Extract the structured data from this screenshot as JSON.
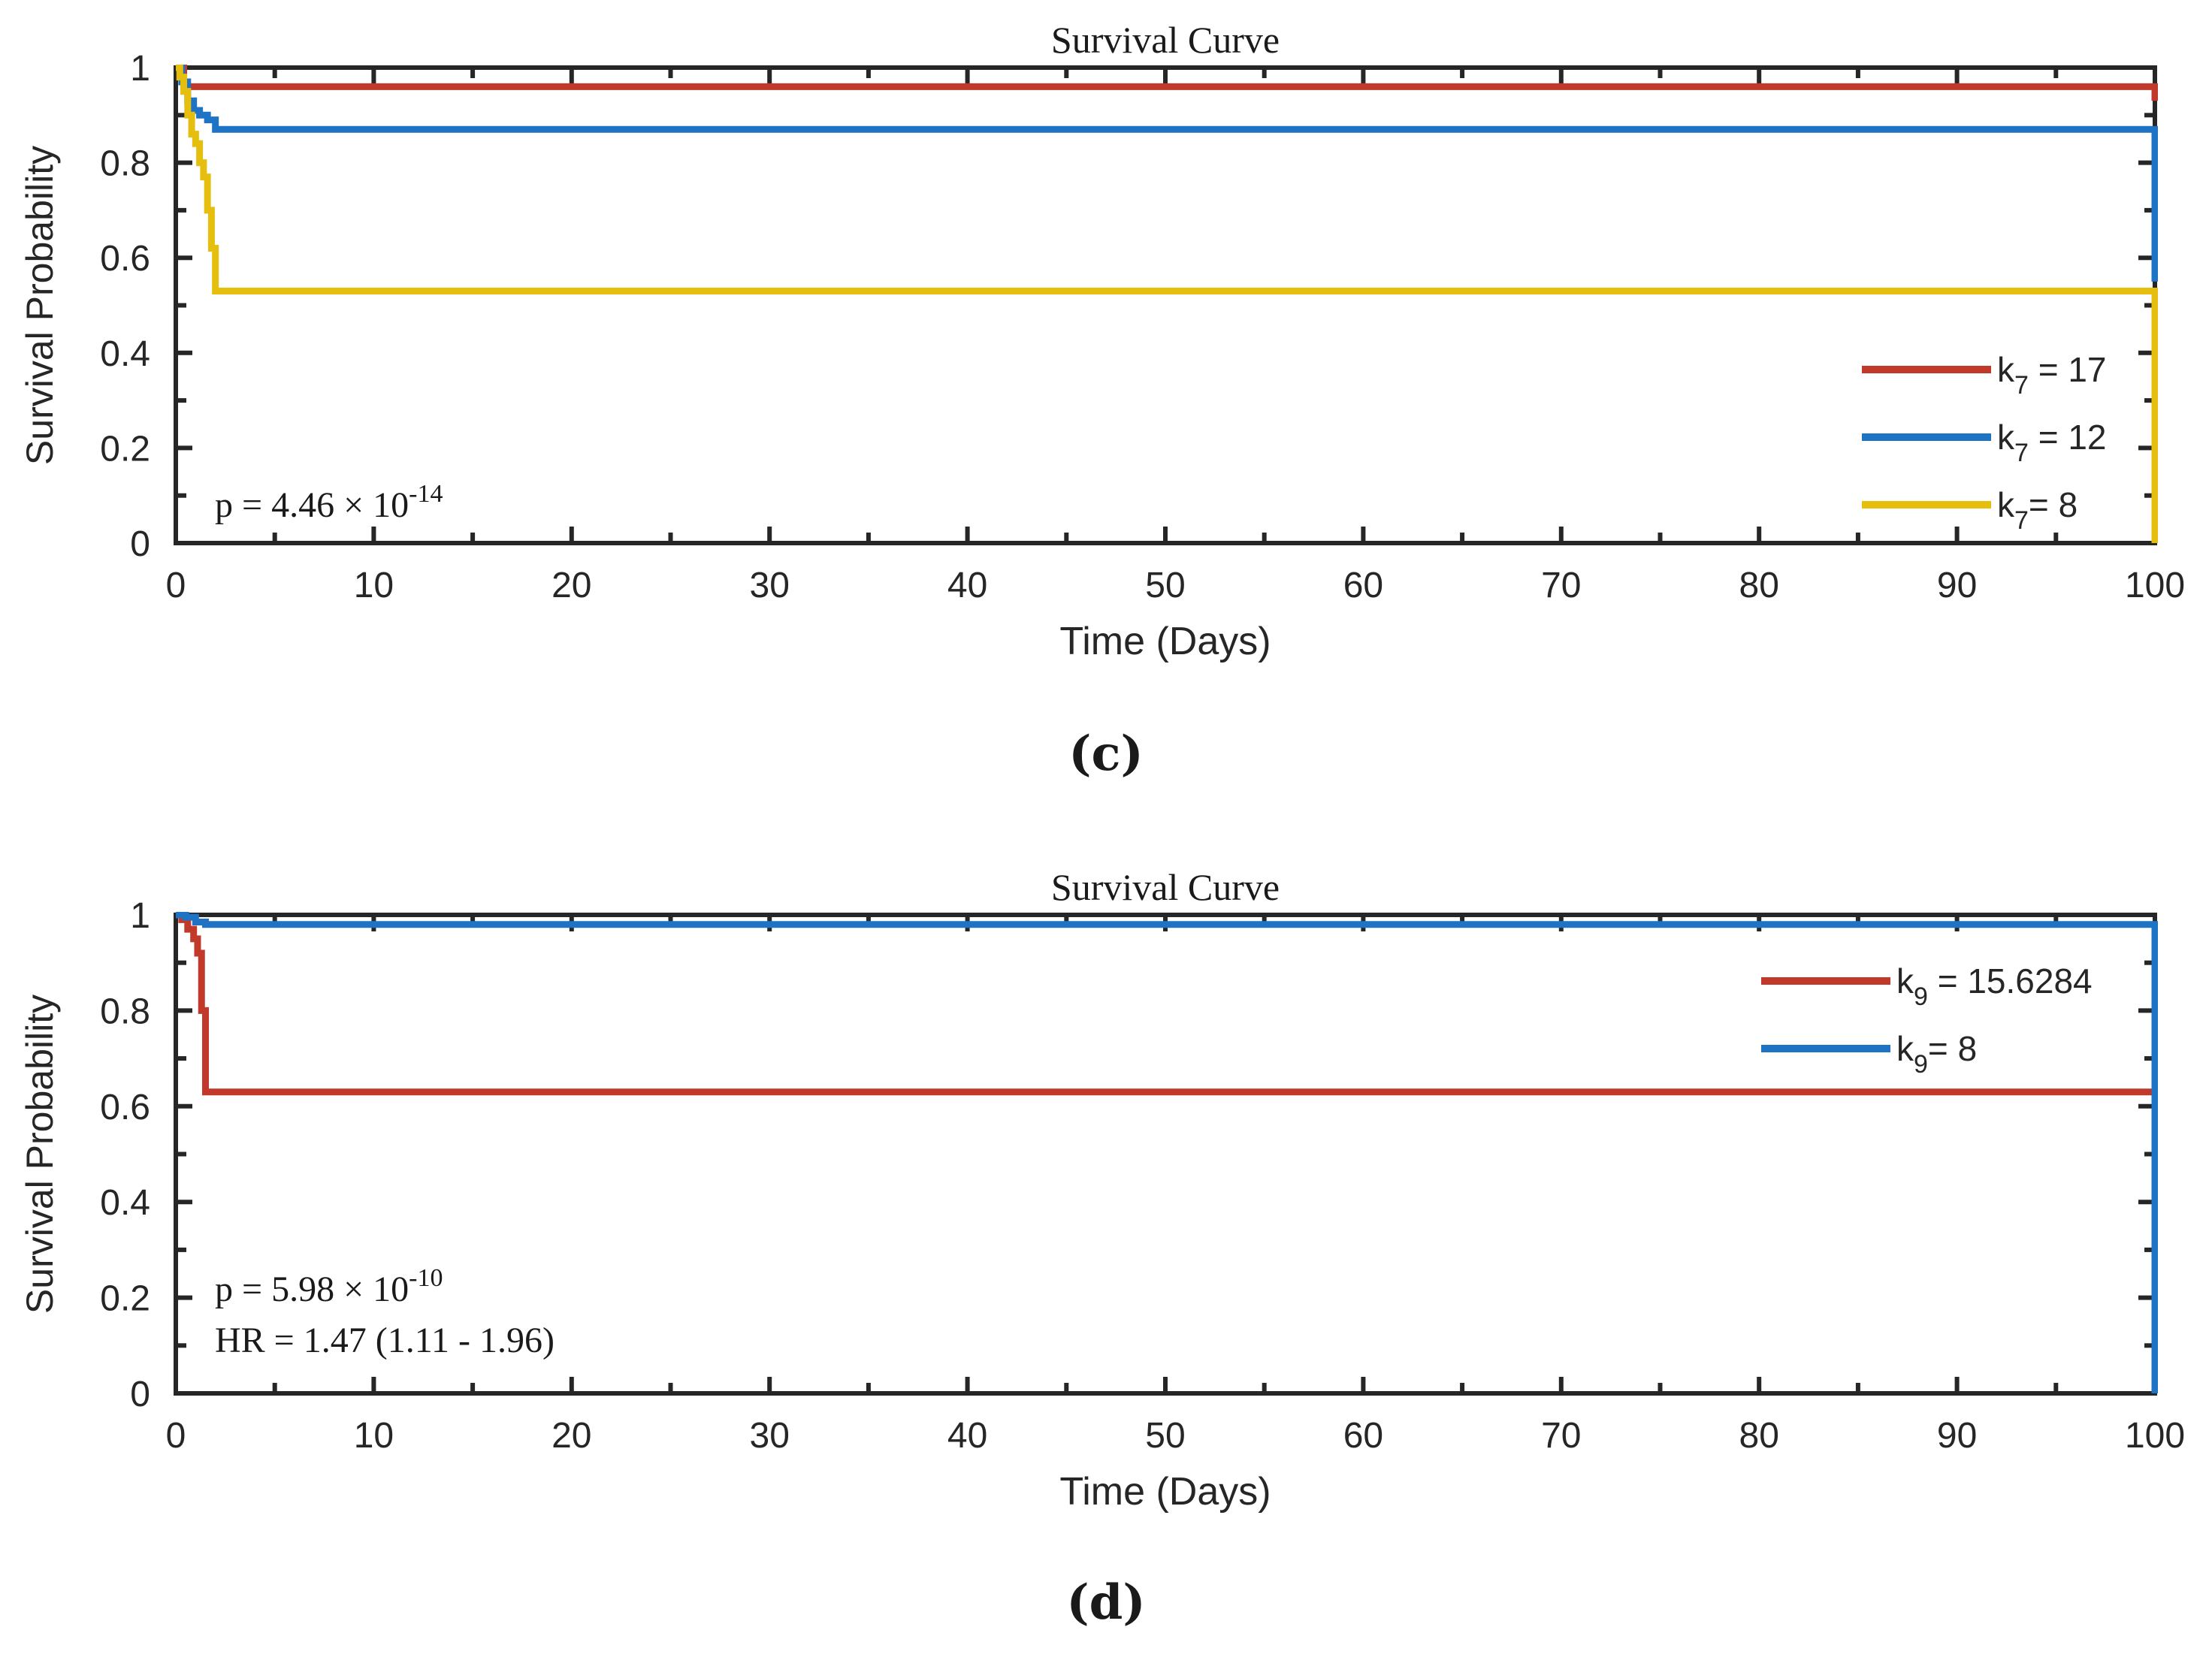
{
  "chart_data": [
    {
      "type": "line",
      "step": true,
      "panel": "c",
      "caption": "(c)",
      "title": "Survival Curve",
      "xlabel": "Time (Days)",
      "ylabel": "Survival Probability",
      "xlim": [
        0,
        100
      ],
      "ylim": [
        0,
        1
      ],
      "xticks": [
        0,
        10,
        20,
        30,
        40,
        50,
        60,
        70,
        80,
        90,
        100
      ],
      "yticks": [
        0,
        0.2,
        0.4,
        0.6,
        0.8,
        1
      ],
      "xticklabels": [
        "0",
        "10",
        "20",
        "30",
        "40",
        "50",
        "60",
        "70",
        "80",
        "90",
        "100"
      ],
      "yticklabels": [
        "0",
        "0.2",
        "0.4",
        "0.6",
        "0.8",
        "1"
      ],
      "grid": false,
      "legend_position": "bottom-right",
      "annotations": [
        {
          "id": "pval",
          "base": "p = 4.46 × 10",
          "sup": "-14"
        }
      ],
      "series": [
        {
          "name": "k7 = 17",
          "legend_base": "k",
          "legend_sub": "7",
          "legend_rest": " = 17",
          "color": "#C0392B",
          "x": [
            0,
            0.4,
            100,
            100
          ],
          "y": [
            1,
            0.96,
            0.96,
            0.93
          ]
        },
        {
          "name": "k7 = 12",
          "legend_base": "k",
          "legend_sub": "7",
          "legend_rest": " = 12",
          "color": "#1F73C4",
          "x": [
            0,
            0.3,
            0.6,
            0.9,
            1.2,
            1.6,
            2.0,
            100,
            100
          ],
          "y": [
            1,
            0.97,
            0.93,
            0.91,
            0.9,
            0.89,
            0.87,
            0.87,
            0.55
          ]
        },
        {
          "name": "k7= 8",
          "legend_base": "k",
          "legend_sub": "7",
          "legend_rest": "= 8",
          "color": "#E6BE0E",
          "x": [
            0,
            0.2,
            0.4,
            0.6,
            0.8,
            1.0,
            1.2,
            1.4,
            1.6,
            1.8,
            2.0,
            100,
            100
          ],
          "y": [
            1,
            0.98,
            0.95,
            0.9,
            0.86,
            0.84,
            0.8,
            0.77,
            0.7,
            0.62,
            0.53,
            0.53,
            0
          ]
        }
      ]
    },
    {
      "type": "line",
      "step": true,
      "panel": "d",
      "caption": "(d)",
      "title": "Survival Curve",
      "xlabel": "Time (Days)",
      "ylabel": "Survival Probability",
      "xlim": [
        0,
        100
      ],
      "ylim": [
        0,
        1
      ],
      "xticks": [
        0,
        10,
        20,
        30,
        40,
        50,
        60,
        70,
        80,
        90,
        100
      ],
      "yticks": [
        0,
        0.2,
        0.4,
        0.6,
        0.8,
        1
      ],
      "xticklabels": [
        "0",
        "10",
        "20",
        "30",
        "40",
        "50",
        "60",
        "70",
        "80",
        "90",
        "100"
      ],
      "yticklabels": [
        "0",
        "0.2",
        "0.4",
        "0.6",
        "0.8",
        "1"
      ],
      "grid": false,
      "legend_position": "top-right",
      "annotations": [
        {
          "id": "pval",
          "base": "p = 5.98 × 10",
          "sup": "-10"
        },
        {
          "id": "hr",
          "base": "HR = 1.47 (1.11 - 1.96)",
          "sup": ""
        }
      ],
      "series": [
        {
          "name": "k9 = 15.6284",
          "legend_base": "k",
          "legend_sub": "9",
          "legend_rest": " = 15.6284",
          "color": "#C0392B",
          "x": [
            0,
            0.3,
            0.6,
            0.9,
            1.1,
            1.3,
            1.5,
            100
          ],
          "y": [
            1,
            0.99,
            0.97,
            0.95,
            0.92,
            0.8,
            0.63,
            0.63
          ]
        },
        {
          "name": "k9= 8",
          "legend_base": "k",
          "legend_sub": "9",
          "legend_rest": "= 8",
          "color": "#1F73C4",
          "x": [
            0,
            0.5,
            1.0,
            1.5,
            100,
            100
          ],
          "y": [
            1,
            0.995,
            0.985,
            0.98,
            0.98,
            0
          ]
        }
      ]
    }
  ]
}
